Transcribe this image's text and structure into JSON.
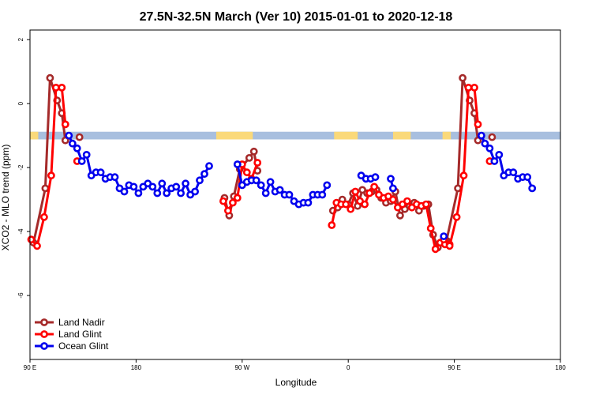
{
  "chart_data": {
    "type": "line",
    "title": "27.5N-32.5N March (Ver 10)   2015-01-01 to 2020-12-18",
    "xlabel": "Longitude",
    "ylabel": "XCO2 - MLO trend (ppm)",
    "xlim": [
      90,
      540
    ],
    "ylim": [
      -8,
      2.3
    ],
    "x_ticks": [
      {
        "value": 90,
        "label": "90 E"
      },
      {
        "value": 180,
        "label": "180"
      },
      {
        "value": 270,
        "label": "90 W"
      },
      {
        "value": 360,
        "label": "0"
      },
      {
        "value": 450,
        "label": "90 E"
      },
      {
        "value": 540,
        "label": "180"
      }
    ],
    "y_ticks": [
      {
        "value": 2,
        "label": "2"
      },
      {
        "value": 0,
        "label": "0"
      },
      {
        "value": -2,
        "label": "-2"
      },
      {
        "value": -4,
        "label": "-4"
      },
      {
        "value": -6,
        "label": "-6"
      }
    ],
    "grid": false,
    "legend_position": "bottom-left",
    "surface_band": {
      "y_range": [
        -1.12,
        -0.88
      ],
      "ocean_color": "#a8bfdf",
      "land_color": "#fad97a",
      "land_segments": [
        [
          90,
          97
        ],
        [
          248,
          279
        ],
        [
          348,
          368
        ],
        [
          398,
          413
        ],
        [
          440,
          447
        ]
      ]
    },
    "series": [
      {
        "name": "Land Nadir",
        "color": "#a52a2a",
        "segments": [
          [
            [
              93,
              -4.35
            ],
            [
              103,
              -2.65
            ],
            [
              107,
              0.8
            ],
            [
              113,
              0.1
            ],
            [
              117,
              -0.3
            ],
            [
              120,
              -1.15
            ]
          ],
          [
            [
              132,
              -1.05
            ]
          ],
          [
            [
              255,
              -2.95
            ],
            [
              259,
              -3.5
            ],
            [
              263,
              -2.9
            ],
            [
              268,
              -2.05
            ],
            [
              276,
              -1.7
            ],
            [
              280,
              -1.5
            ],
            [
              283,
              -2.1
            ]
          ],
          [
            [
              347,
              -3.35
            ],
            [
              351,
              -3.25
            ],
            [
              355,
              -3.0
            ],
            [
              360,
              -3.15
            ],
            [
              364,
              -2.8
            ],
            [
              368,
              -3.2
            ],
            [
              372,
              -2.7
            ],
            [
              376,
              -2.8
            ],
            [
              380,
              -2.75
            ],
            [
              384,
              -2.7
            ],
            [
              388,
              -2.95
            ],
            [
              392,
              -3.1
            ],
            [
              396,
              -3.05
            ],
            [
              400,
              -2.75
            ],
            [
              404,
              -3.5
            ],
            [
              408,
              -3.3
            ],
            [
              412,
              -3.2
            ],
            [
              416,
              -3.1
            ],
            [
              420,
              -3.35
            ],
            [
              424,
              -3.2
            ],
            [
              428,
              -3.15
            ],
            [
              432,
              -4.1
            ],
            [
              436,
              -4.5
            ],
            [
              440,
              -4.35
            ],
            [
              444,
              -4.3
            ]
          ],
          [
            [
              443,
              -4.35
            ],
            [
              453,
              -2.65
            ],
            [
              457,
              0.8
            ],
            [
              463,
              0.1
            ],
            [
              467,
              -0.3
            ],
            [
              470,
              -1.15
            ]
          ],
          [
            [
              482,
              -1.05
            ]
          ]
        ]
      },
      {
        "name": "Land Glint",
        "color": "#ff0000",
        "segments": [
          [
            [
              91,
              -4.25
            ],
            [
              96,
              -4.45
            ],
            [
              102,
              -3.55
            ],
            [
              108,
              -2.25
            ],
            [
              112,
              0.5
            ],
            [
              117,
              0.5
            ],
            [
              120,
              -0.65
            ]
          ],
          [
            [
              130,
              -1.8
            ]
          ],
          [
            [
              254,
              -3.05
            ],
            [
              258,
              -3.35
            ],
            [
              262,
              -3.1
            ],
            [
              266,
              -2.95
            ],
            [
              270,
              -1.9
            ],
            [
              274,
              -2.15
            ],
            [
              278,
              -2.35
            ],
            [
              283,
              -1.85
            ]
          ],
          [
            [
              346,
              -3.8
            ],
            [
              350,
              -3.1
            ],
            [
              354,
              -3.15
            ],
            [
              358,
              -3.15
            ],
            [
              362,
              -3.3
            ],
            [
              366,
              -2.75
            ],
            [
              370,
              -3.05
            ],
            [
              374,
              -3.15
            ],
            [
              378,
              -2.8
            ],
            [
              382,
              -2.6
            ],
            [
              386,
              -2.85
            ],
            [
              390,
              -2.95
            ],
            [
              394,
              -2.9
            ],
            [
              398,
              -3.0
            ],
            [
              402,
              -3.25
            ],
            [
              406,
              -3.15
            ],
            [
              410,
              -3.05
            ],
            [
              414,
              -3.25
            ],
            [
              418,
              -3.15
            ],
            [
              422,
              -3.2
            ],
            [
              426,
              -3.15
            ],
            [
              430,
              -3.9
            ],
            [
              434,
              -4.55
            ],
            [
              438,
              -4.35
            ],
            [
              442,
              -4.4
            ],
            [
              446,
              -4.4
            ]
          ],
          [
            [
              441,
              -4.25
            ],
            [
              446,
              -4.45
            ],
            [
              452,
              -3.55
            ],
            [
              458,
              -2.25
            ],
            [
              462,
              0.5
            ],
            [
              467,
              0.5
            ],
            [
              470,
              -0.65
            ]
          ],
          [
            [
              480,
              -1.8
            ]
          ]
        ]
      },
      {
        "name": "Ocean Glint",
        "color": "#0000ee",
        "segments": [
          [
            [
              123,
              -1.0
            ],
            [
              126,
              -1.25
            ],
            [
              130,
              -1.4
            ],
            [
              134,
              -1.8
            ],
            [
              138,
              -1.6
            ],
            [
              142,
              -2.25
            ],
            [
              146,
              -2.15
            ],
            [
              150,
              -2.15
            ],
            [
              154,
              -2.35
            ],
            [
              158,
              -2.3
            ],
            [
              162,
              -2.3
            ],
            [
              166,
              -2.65
            ],
            [
              170,
              -2.75
            ],
            [
              174,
              -2.55
            ],
            [
              178,
              -2.6
            ],
            [
              182,
              -2.8
            ],
            [
              186,
              -2.6
            ],
            [
              190,
              -2.5
            ],
            [
              194,
              -2.6
            ],
            [
              198,
              -2.8
            ],
            [
              202,
              -2.5
            ],
            [
              206,
              -2.8
            ],
            [
              210,
              -2.65
            ],
            [
              214,
              -2.6
            ],
            [
              218,
              -2.8
            ],
            [
              222,
              -2.5
            ],
            [
              226,
              -2.85
            ],
            [
              230,
              -2.75
            ],
            [
              234,
              -2.4
            ],
            [
              238,
              -2.2
            ],
            [
              242,
              -1.95
            ]
          ],
          [
            [
              266,
              -1.9
            ],
            [
              270,
              -2.55
            ],
            [
              274,
              -2.45
            ],
            [
              278,
              -2.4
            ],
            [
              282,
              -2.4
            ],
            [
              286,
              -2.55
            ],
            [
              290,
              -2.8
            ],
            [
              294,
              -2.45
            ],
            [
              298,
              -2.75
            ],
            [
              302,
              -2.7
            ],
            [
              306,
              -2.85
            ],
            [
              310,
              -2.85
            ],
            [
              314,
              -3.05
            ],
            [
              318,
              -3.15
            ],
            [
              322,
              -3.1
            ],
            [
              326,
              -3.1
            ],
            [
              330,
              -2.85
            ],
            [
              334,
              -2.85
            ],
            [
              338,
              -2.85
            ],
            [
              342,
              -2.55
            ]
          ],
          [
            [
              371,
              -2.25
            ],
            [
              375,
              -2.35
            ],
            [
              379,
              -2.35
            ],
            [
              383,
              -2.3
            ]
          ],
          [
            [
              396,
              -2.35
            ],
            [
              398,
              -2.65
            ]
          ],
          [
            [
              441,
              -4.15
            ]
          ],
          [
            [
              473,
              -1.0
            ],
            [
              476,
              -1.25
            ],
            [
              480,
              -1.4
            ],
            [
              484,
              -1.8
            ],
            [
              488,
              -1.6
            ],
            [
              492,
              -2.25
            ],
            [
              496,
              -2.15
            ],
            [
              500,
              -2.15
            ],
            [
              504,
              -2.35
            ],
            [
              508,
              -2.3
            ],
            [
              512,
              -2.3
            ],
            [
              516,
              -2.65
            ]
          ]
        ]
      }
    ]
  }
}
